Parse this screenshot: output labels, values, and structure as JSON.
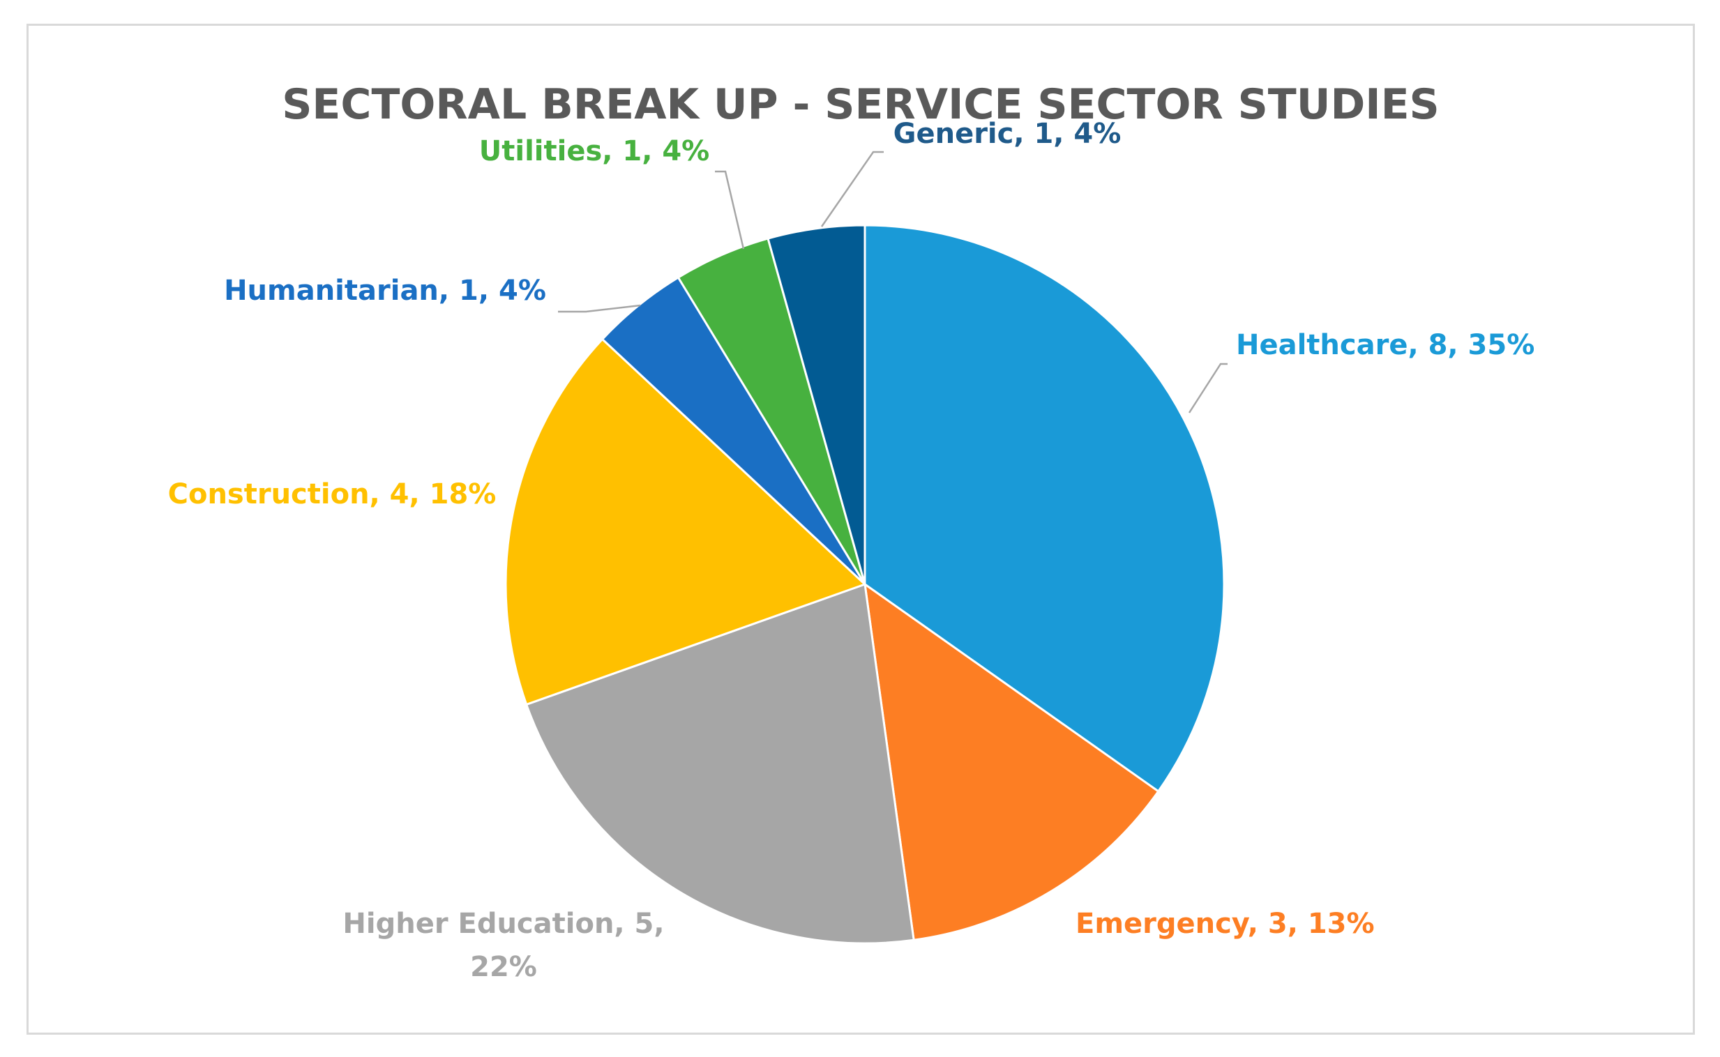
{
  "chart_data": {
    "type": "pie",
    "title": "SECTORAL BREAK UP - SERVICE SECTOR STUDIES",
    "slices": [
      {
        "name": "Healthcare",
        "value": 8,
        "percent": "35%",
        "label": "Healthcare, 8, 35%",
        "color": "#1a9ad7"
      },
      {
        "name": "Emergency",
        "value": 3,
        "percent": "13%",
        "label": "Emergency, 3, 13%",
        "color": "#fd7e23"
      },
      {
        "name": "Higher Education",
        "value": 5,
        "percent": "22%",
        "label_lines": [
          "Higher Education, 5,",
          "22%"
        ],
        "color": "#a6a6a6"
      },
      {
        "name": "Construction",
        "value": 4,
        "percent": "18%",
        "label": "Construction,  4, 18%",
        "color": "#ffc000"
      },
      {
        "name": "Humanitarian",
        "value": 1,
        "percent": "4%",
        "label": "Humanitarian,  1, 4%",
        "color": "#1a6fc4"
      },
      {
        "name": "Utilities",
        "value": 1,
        "percent": "4%",
        "label": "Utilities, 1, 4%",
        "color": "#47b13f"
      },
      {
        "name": "Generic",
        "value": 1,
        "percent": "4%",
        "label": "Generic, 1, 4%",
        "color": "#025b93"
      }
    ],
    "label_color_override": {
      "Generic": "#1f5a8a",
      "Utilities": "#47b13f",
      "Humanitarian": "#1a6fc4"
    },
    "legend": "none"
  }
}
